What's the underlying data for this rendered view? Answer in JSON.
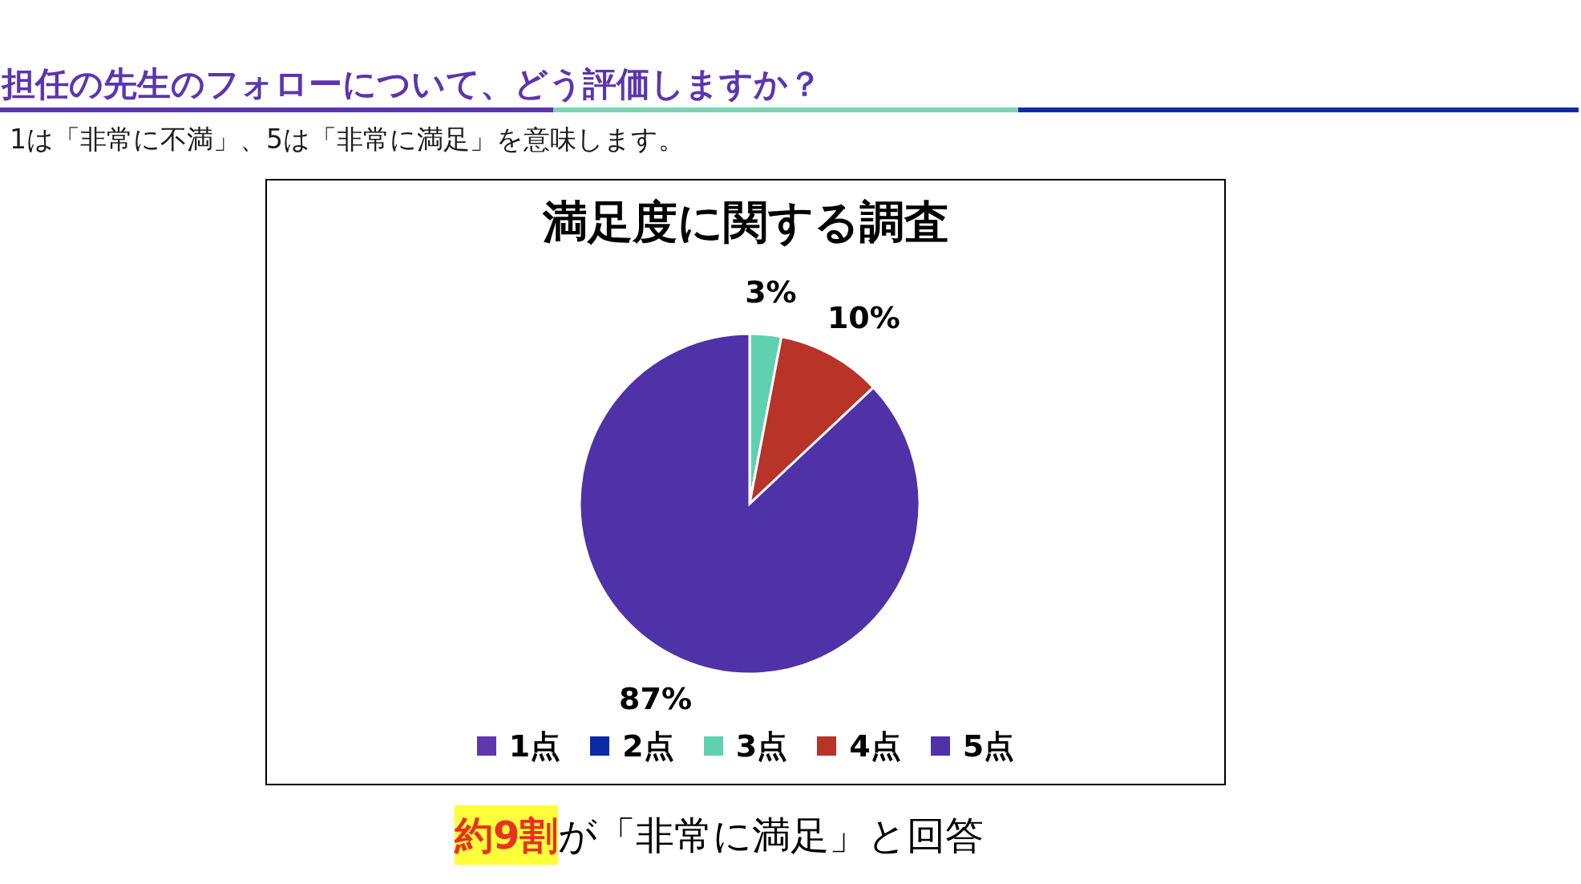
{
  "chart_data": {
    "type": "pie",
    "title": "担任の先生のフォローについて、どう評価しますか？",
    "subtitle": "1は「非常に不満」、5は「非常に満足」を意味します。",
    "annotations": [
      "満足度に関する調査",
      "約9割",
      "が「非常に満足」と回答"
    ],
    "categories": [
      "1点",
      "2点",
      "3点",
      "4点",
      "5点"
    ],
    "values": [
      0,
      0,
      3,
      10,
      87
    ],
    "colors": [
      "#6236ae",
      "#0a2aa6",
      "#5fd1b1",
      "#b83328",
      "#4f31a8"
    ],
    "value_labels": [
      null,
      null,
      "3%",
      "10%",
      "87%"
    ],
    "legend": "bottom"
  }
}
